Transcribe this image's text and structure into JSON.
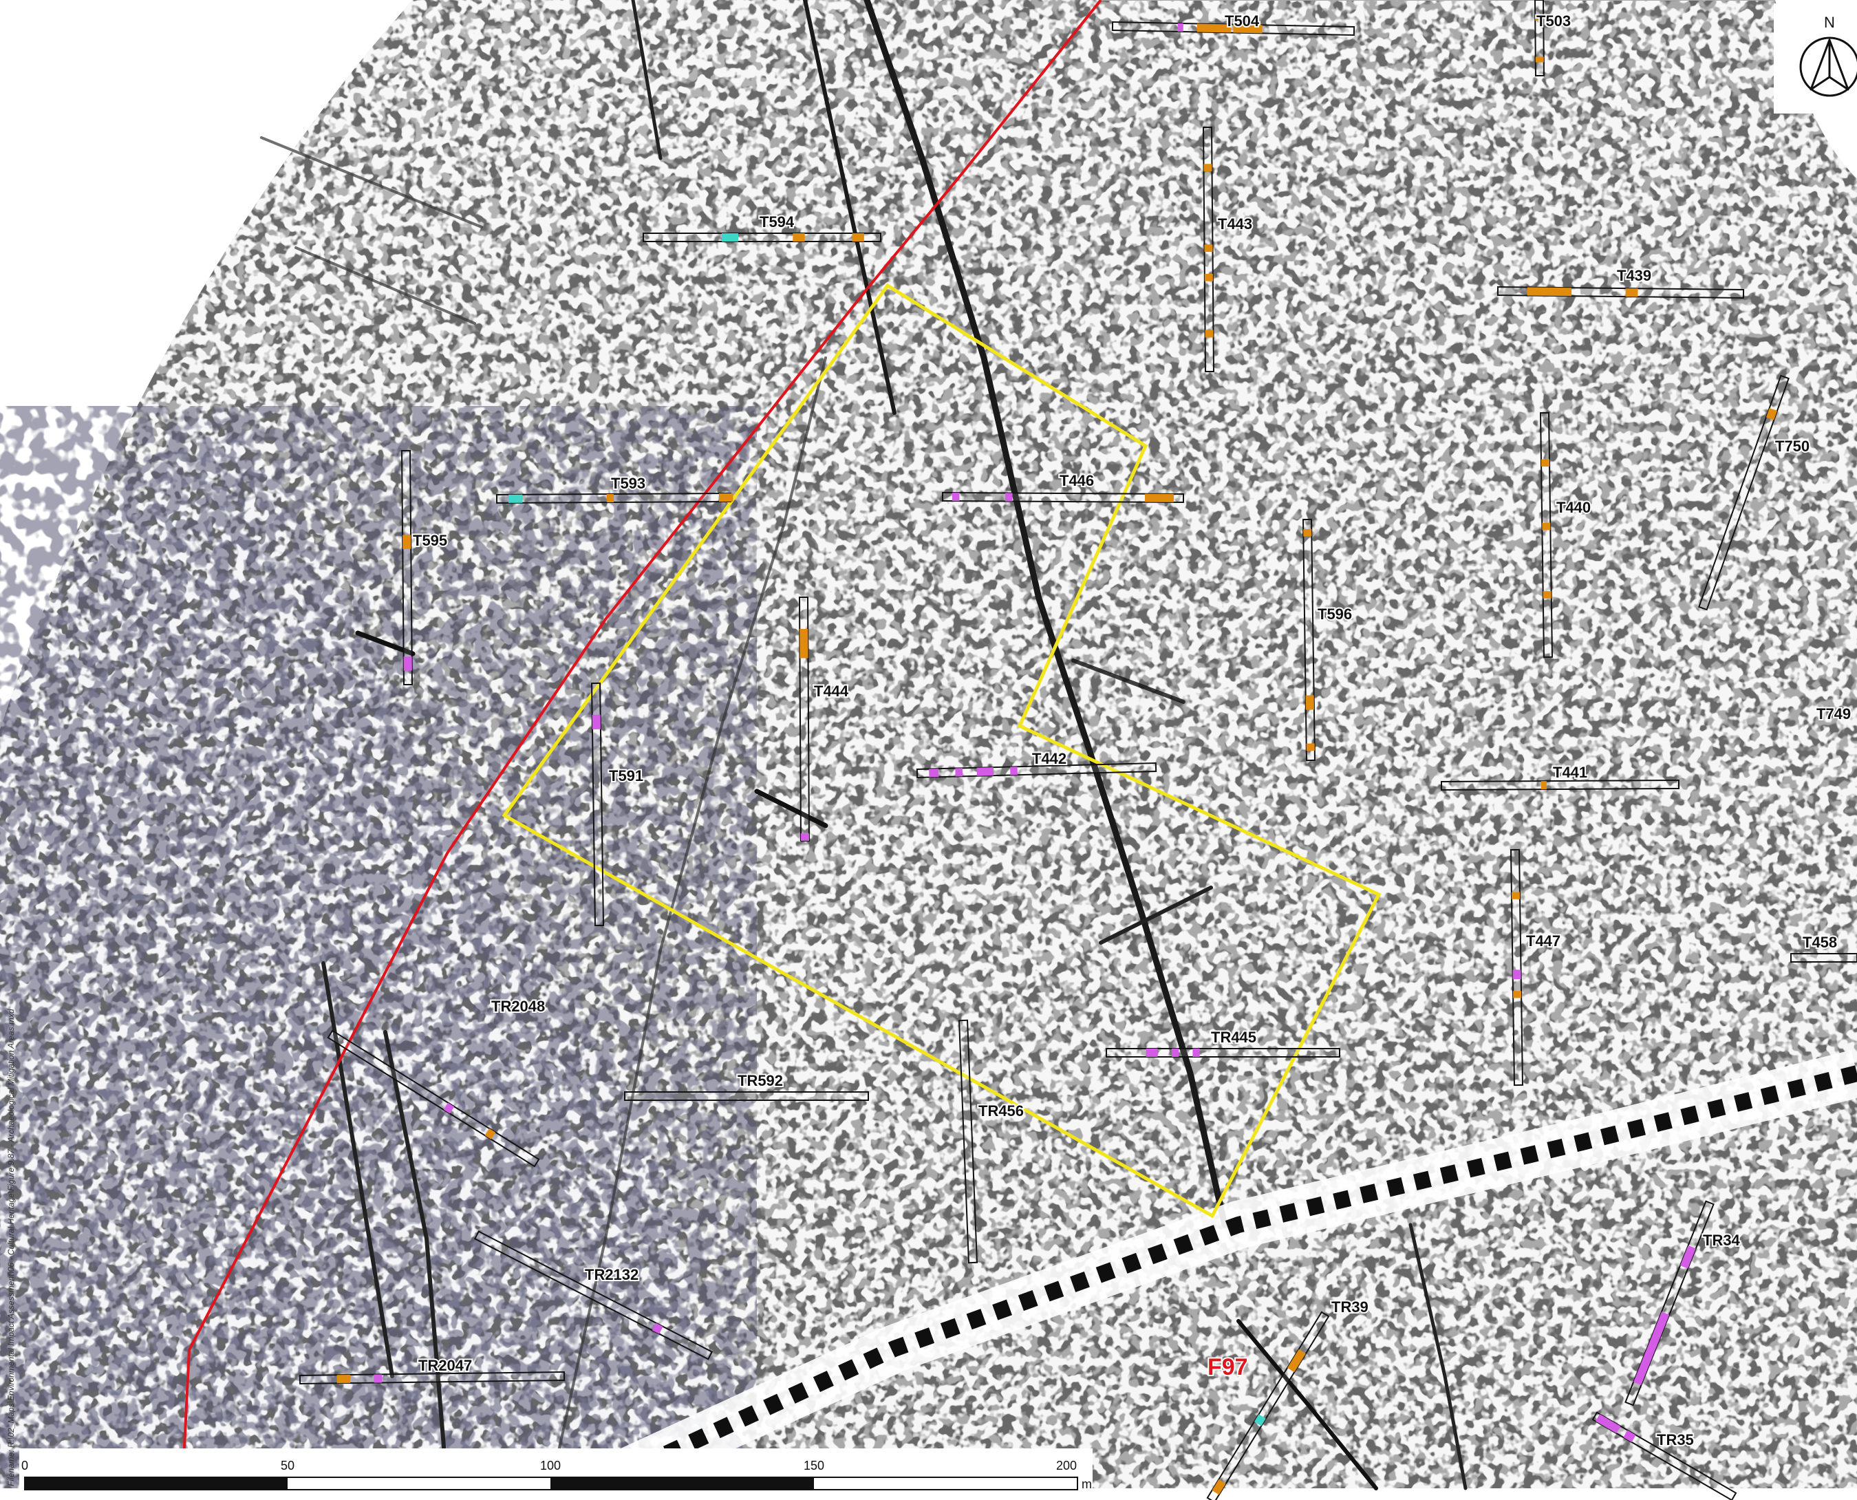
{
  "colors": {
    "survey_boundary": "#e0141d",
    "mitigation_area": "#f2e51b",
    "trench_outline": "#111111",
    "feature_orange": "#e08a0e",
    "feature_magenta": "#d35be6",
    "feature_cyan": "#3fd6c8",
    "feature_label": "#e0141d"
  },
  "north_arrow": {
    "label": "N",
    "icon": "north-arrow-icon"
  },
  "trenches": [
    {
      "id": "T504",
      "label": "T504"
    },
    {
      "id": "T503",
      "label": "T503"
    },
    {
      "id": "T594",
      "label": "T594"
    },
    {
      "id": "T443",
      "label": "T443"
    },
    {
      "id": "T439",
      "label": "T439"
    },
    {
      "id": "T750",
      "label": "T750"
    },
    {
      "id": "T593",
      "label": "T593"
    },
    {
      "id": "T446",
      "label": "T446"
    },
    {
      "id": "T440",
      "label": "T440"
    },
    {
      "id": "T595",
      "label": "T595"
    },
    {
      "id": "T596",
      "label": "T596"
    },
    {
      "id": "T444",
      "label": "T444"
    },
    {
      "id": "T591",
      "label": "T591"
    },
    {
      "id": "T749",
      "label": "T749"
    },
    {
      "id": "T442",
      "label": "T442"
    },
    {
      "id": "T441",
      "label": "T441"
    },
    {
      "id": "T447",
      "label": "T447"
    },
    {
      "id": "T458",
      "label": "T458"
    },
    {
      "id": "TR2048",
      "label": "TR2048"
    },
    {
      "id": "TR445",
      "label": "TR445"
    },
    {
      "id": "TR592",
      "label": "TR592"
    },
    {
      "id": "TR456",
      "label": "TR456"
    },
    {
      "id": "TR34",
      "label": "TR34"
    },
    {
      "id": "TR2132",
      "label": "TR2132"
    },
    {
      "id": "TR39",
      "label": "TR39"
    },
    {
      "id": "TR2047",
      "label": "TR2047"
    },
    {
      "id": "TR35",
      "label": "TR35"
    }
  ],
  "feature_label": "F97",
  "scale_bar": {
    "ticks": [
      "0",
      "50",
      "100",
      "150",
      "200"
    ],
    "unit": "m"
  },
  "filename": "Filename: R:\\02_Maps\\Environmental Impact Assessment\\06 - Cultural Heritage\\Figure 9.87 - Archaeological Mitigation Areas.mxd"
}
